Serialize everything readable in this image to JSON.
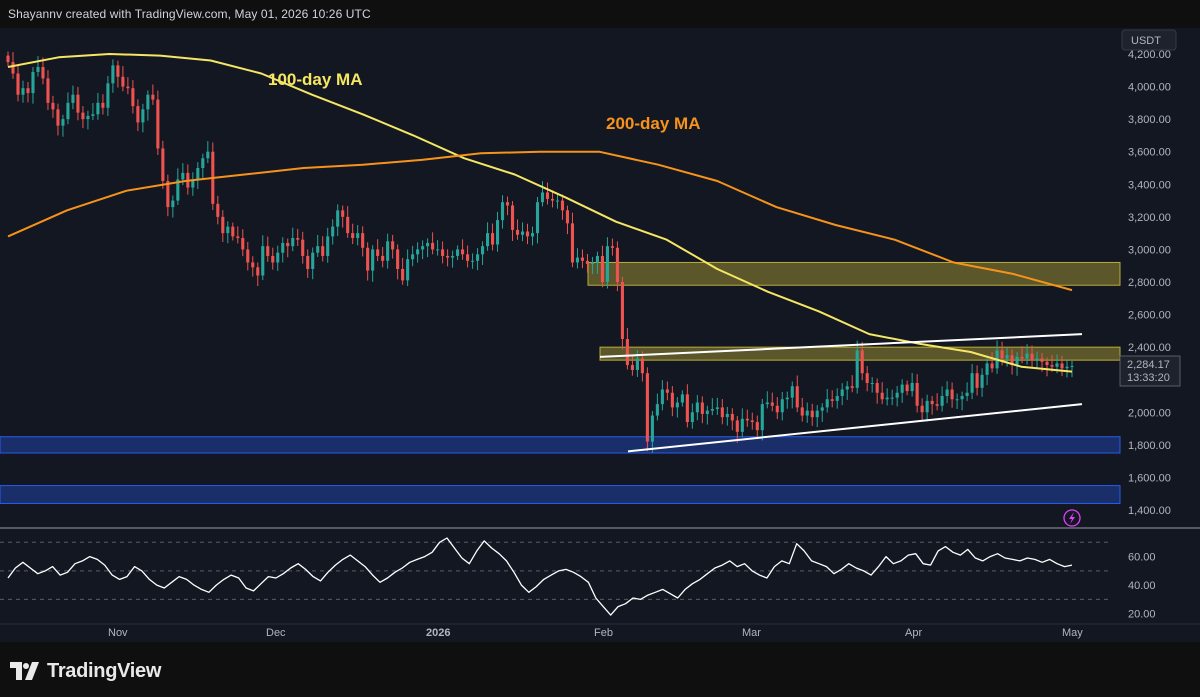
{
  "header": {
    "attribution": "Shayannv created with TradingView.com, May 01, 2026 10:26 UTC"
  },
  "branding": {
    "name": "TradingView",
    "logo_icon": "tradingview-logo-icon"
  },
  "colors": {
    "background": "#131722",
    "frame": "#0f0f10",
    "up_candle": "#26a69a",
    "down_candle": "#ef5350",
    "ma100": "#f5e663",
    "ma200": "#f7931a",
    "supply_zone": "#c9b83a",
    "demand_zone": "#2962ff",
    "trendline": "#ffffff",
    "rsi_line": "#ffffff"
  },
  "chart_data": {
    "type": "candlestick",
    "symbol_quote": "USDT",
    "price_axis": {
      "range": [
        1400,
        4200
      ],
      "ticks": [
        "4,200.00",
        "4,000.00",
        "3,800.00",
        "3,600.00",
        "3,400.00",
        "3,200.00",
        "3,000.00",
        "2,800.00",
        "2,600.00",
        "2,400.00",
        "2,200.00",
        "2,000.00",
        "1,800.00",
        "1,600.00",
        "1,400.00"
      ]
    },
    "time_axis": {
      "labels": [
        "Nov",
        "Dec",
        "2026",
        "Feb",
        "Mar",
        "Apr",
        "May"
      ]
    },
    "last_price": {
      "value": "2,284.17",
      "countdown": "13:33:20"
    },
    "approx_daily_closes": [
      4150,
      4080,
      3950,
      3990,
      3960,
      4090,
      4120,
      4050,
      3900,
      3860,
      3760,
      3800,
      3900,
      3950,
      3840,
      3800,
      3820,
      3830,
      3900,
      3870,
      4020,
      4130,
      4060,
      4000,
      3990,
      3880,
      3780,
      3860,
      3950,
      3920,
      3620,
      3420,
      3260,
      3300,
      3430,
      3470,
      3380,
      3430,
      3500,
      3560,
      3600,
      3280,
      3200,
      3100,
      3140,
      3080,
      3070,
      3000,
      2920,
      2890,
      2840,
      3020,
      2960,
      2920,
      2980,
      3040,
      3020,
      3070,
      3060,
      2960,
      2880,
      2980,
      3020,
      2960,
      3080,
      3140,
      3240,
      3200,
      3100,
      3070,
      3100,
      3010,
      2870,
      3000,
      2960,
      2930,
      3050,
      3000,
      2880,
      2810,
      2940,
      2970,
      3000,
      3020,
      3040,
      3000,
      3000,
      2960,
      2950,
      2960,
      3000,
      2970,
      2930,
      2930,
      2970,
      3020,
      3100,
      3030,
      3180,
      3290,
      3270,
      3120,
      3090,
      3110,
      3080,
      3100,
      3290,
      3350,
      3310,
      3300,
      3300,
      3240,
      3160,
      2920,
      2950,
      2930,
      2910,
      2920,
      2960,
      2800,
      3020,
      3010,
      2800,
      2450,
      2290,
      2260,
      2330,
      2240,
      1820,
      1980,
      2050,
      2140,
      2120,
      2030,
      2060,
      2110,
      1940,
      2000,
      2060,
      1990,
      2010,
      2020,
      2030,
      1970,
      1990,
      1950,
      1880,
      1960,
      1950,
      1940,
      1890,
      2050,
      2060,
      2040,
      2000,
      2080,
      2090,
      2160,
      2030,
      1980,
      2010,
      1970,
      2010,
      2030,
      2080,
      2070,
      2100,
      2140,
      2160,
      2150,
      2380,
      2240,
      2180,
      2180,
      2120,
      2080,
      2090,
      2090,
      2120,
      2170,
      2130,
      2180,
      2040,
      2000,
      2070,
      2050,
      2040,
      2100,
      2140,
      2080,
      2080,
      2100,
      2120,
      2240,
      2150,
      2230,
      2300,
      2270,
      2380,
      2330,
      2350,
      2290,
      2340,
      2330,
      2360,
      2320,
      2330,
      2310,
      2290,
      2280,
      2300,
      2270,
      2280,
      2284
    ],
    "moving_averages": [
      {
        "name": "100-day MA",
        "values": [
          4120,
          4180,
          4200,
          4190,
          4160,
          4080,
          3950,
          3830,
          3700,
          3560,
          3460,
          3320,
          3170,
          3060,
          2880,
          2740,
          2620,
          2480,
          2420,
          2370,
          2280,
          2250
        ]
      },
      {
        "name": "200-day MA",
        "values": [
          3080,
          3240,
          3360,
          3420,
          3460,
          3500,
          3520,
          3550,
          3590,
          3600,
          3600,
          3520,
          3420,
          3260,
          3150,
          3060,
          2920,
          2850,
          2750
        ]
      }
    ],
    "zones": [
      {
        "kind": "supply",
        "from": 2780,
        "to": 2920
      },
      {
        "kind": "resistance",
        "from": 2320,
        "to": 2400
      },
      {
        "kind": "demand",
        "from": 1750,
        "to": 1850
      },
      {
        "kind": "demand",
        "from": 1440,
        "to": 1550
      }
    ],
    "channel": {
      "upper": [
        [
          2340
        ],
        [
          2480
        ]
      ],
      "lower": [
        [
          1760
        ],
        [
          2050
        ]
      ]
    },
    "rsi": {
      "axis_ticks": [
        "60.00",
        "40.00",
        "20.00"
      ],
      "range": [
        10,
        80
      ],
      "levels": [
        70,
        50,
        30
      ],
      "values": [
        45,
        52,
        56,
        52,
        48,
        50,
        53,
        47,
        49,
        55,
        57,
        60,
        58,
        54,
        47,
        44,
        46,
        53,
        50,
        44,
        40,
        38,
        42,
        46,
        44,
        40,
        37,
        35,
        40,
        44,
        47,
        45,
        38,
        36,
        41,
        46,
        45,
        48,
        52,
        55,
        51,
        46,
        43,
        49,
        54,
        58,
        61,
        57,
        53,
        47,
        42,
        45,
        49,
        52,
        56,
        58,
        60,
        63,
        70,
        73,
        66,
        59,
        55,
        64,
        71,
        66,
        62,
        57,
        49,
        40,
        35,
        39,
        44,
        47,
        50,
        51,
        49,
        46,
        42,
        31,
        25,
        19,
        25,
        27,
        31,
        30,
        33,
        35,
        37,
        34,
        31,
        37,
        41,
        44,
        48,
        52,
        54,
        57,
        53,
        55,
        50,
        47,
        45,
        53,
        57,
        55,
        69,
        64,
        57,
        55,
        53,
        48,
        51,
        55,
        52,
        50,
        47,
        53,
        60,
        55,
        57,
        61,
        62,
        55,
        54,
        64,
        67,
        63,
        61,
        65,
        59,
        57,
        60,
        62,
        59,
        58,
        57,
        59,
        58,
        56,
        58,
        55,
        53,
        54
      ]
    }
  },
  "annotations": {
    "ma100_label": "100-day MA",
    "ma200_label": "200-day MA",
    "quote_badge": "USDT"
  }
}
